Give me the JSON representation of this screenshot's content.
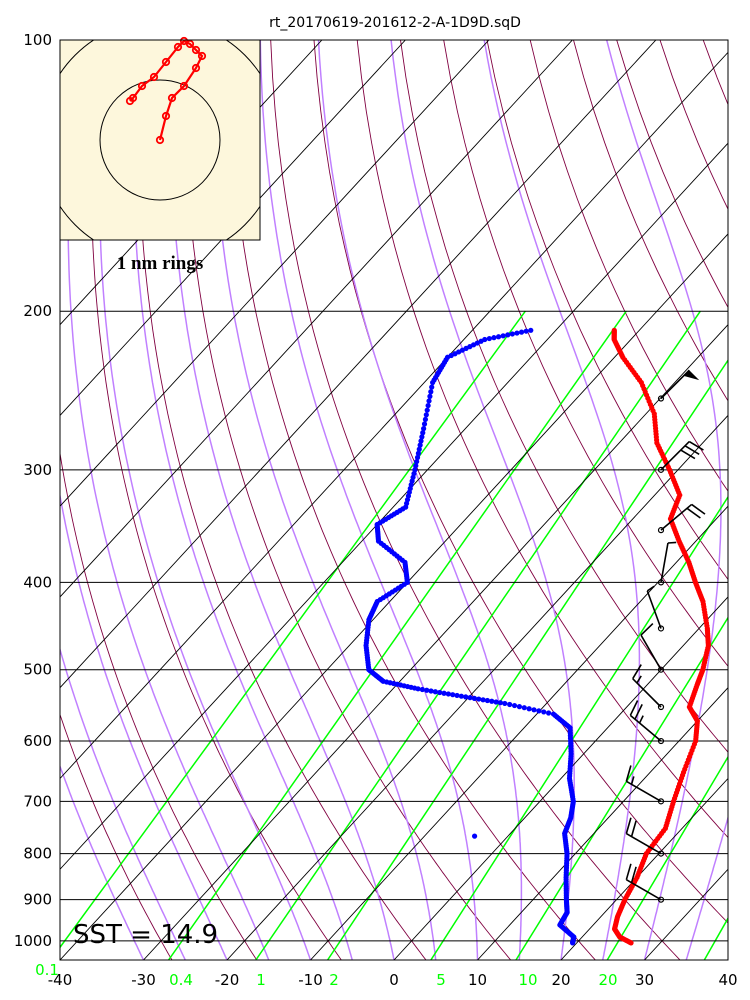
{
  "chart_data": {
    "type": "skew-t",
    "title": "rt_20170619-201612-2-A-1D9D.sqD",
    "sst_label": "SST = 14.9",
    "hodograph_label": "1 nm rings",
    "x_axis": {
      "range": [
        -40,
        40
      ],
      "ticks": [
        -40,
        -30,
        -20,
        -10,
        0,
        10,
        20,
        30,
        40
      ]
    },
    "y_axis": {
      "scale": "log",
      "range": [
        1050,
        100
      ],
      "ticks": [
        100,
        200,
        300,
        400,
        500,
        600,
        700,
        800,
        900,
        1000
      ]
    },
    "mixing_ratio_labels": [
      "0.1",
      "0.4",
      "1",
      "2",
      "5",
      "10",
      "20"
    ],
    "colors": {
      "temperature": "#ff0000",
      "dewpoint": "#0000ff",
      "mixing_ratio": "#00ff00",
      "moist_adiabat": "#c080ff",
      "dry_adiabat": "#800040",
      "isotherm": "#000000",
      "hodograph_bg": "#fdf7dc"
    },
    "temperature_profile": [
      {
        "p": 1005,
        "t": 26.5
      },
      {
        "p": 990,
        "t": 24.5
      },
      {
        "p": 970,
        "t": 23.0
      },
      {
        "p": 940,
        "t": 22.0
      },
      {
        "p": 900,
        "t": 21.0
      },
      {
        "p": 850,
        "t": 20.0
      },
      {
        "p": 800,
        "t": 18.5
      },
      {
        "p": 750,
        "t": 18.0
      },
      {
        "p": 700,
        "t": 16.0
      },
      {
        "p": 650,
        "t": 14.0
      },
      {
        "p": 600,
        "t": 12.0
      },
      {
        "p": 570,
        "t": 10.0
      },
      {
        "p": 550,
        "t": 7.5
      },
      {
        "p": 520,
        "t": 6.0
      },
      {
        "p": 500,
        "t": 5.0
      },
      {
        "p": 470,
        "t": 3.0
      },
      {
        "p": 450,
        "t": 1.0
      },
      {
        "p": 420,
        "t": -2.5
      },
      {
        "p": 400,
        "t": -5.5
      },
      {
        "p": 380,
        "t": -8.5
      },
      {
        "p": 360,
        "t": -12.0
      },
      {
        "p": 340,
        "t": -15.5
      },
      {
        "p": 320,
        "t": -17.0
      },
      {
        "p": 300,
        "t": -21.0
      },
      {
        "p": 280,
        "t": -25.5
      },
      {
        "p": 260,
        "t": -29.0
      },
      {
        "p": 240,
        "t": -34.0
      },
      {
        "p": 225,
        "t": -39.0
      },
      {
        "p": 215,
        "t": -42.0
      },
      {
        "p": 210,
        "t": -43.0
      }
    ],
    "dewpoint_profile": [
      {
        "p": 1005,
        "t": 19.5
      },
      {
        "p": 990,
        "t": 19.0
      },
      {
        "p": 960,
        "t": 16.0
      },
      {
        "p": 930,
        "t": 15.5
      },
      {
        "p": 900,
        "t": 14.0
      },
      {
        "p": 850,
        "t": 11.5
      },
      {
        "p": 800,
        "t": 9.0
      },
      {
        "p": 760,
        "t": 6.5
      },
      {
        "p": 730,
        "t": 5.5
      },
      {
        "p": 700,
        "t": 4.0
      },
      {
        "p": 660,
        "t": 1.0
      },
      {
        "p": 620,
        "t": -1.5
      },
      {
        "p": 580,
        "t": -4.5
      },
      {
        "p": 560,
        "t": -8.0
      },
      {
        "p": 545,
        "t": -15.0
      },
      {
        "p": 535,
        "t": -21.0
      },
      {
        "p": 525,
        "t": -27.0
      },
      {
        "p": 515,
        "t": -32.0
      },
      {
        "p": 500,
        "t": -35.0
      },
      {
        "p": 470,
        "t": -38.0
      },
      {
        "p": 440,
        "t": -40.5
      },
      {
        "p": 420,
        "t": -41.5
      },
      {
        "p": 400,
        "t": -40.0
      },
      {
        "p": 380,
        "t": -42.5
      },
      {
        "p": 360,
        "t": -48.0
      },
      {
        "p": 345,
        "t": -50.0
      },
      {
        "p": 330,
        "t": -48.5
      },
      {
        "p": 300,
        "t": -51.5
      },
      {
        "p": 270,
        "t": -55.0
      },
      {
        "p": 240,
        "t": -59.0
      },
      {
        "p": 225,
        "t": -60.0
      },
      {
        "p": 215,
        "t": -57.5
      },
      {
        "p": 210,
        "t": -53.0
      }
    ],
    "stray_dewpoint_point": {
      "p": 765,
      "t": -4.0
    },
    "wind_barbs": [
      {
        "p": 900,
        "speed_kt": 20,
        "dir": 300
      },
      {
        "p": 800,
        "speed_kt": 20,
        "dir": 300
      },
      {
        "p": 700,
        "speed_kt": 15,
        "dir": 300
      },
      {
        "p": 600,
        "speed_kt": 25,
        "dir": 310
      },
      {
        "p": 550,
        "speed_kt": 15,
        "dir": 315
      },
      {
        "p": 500,
        "speed_kt": 10,
        "dir": 330
      },
      {
        "p": 450,
        "speed_kt": 5,
        "dir": 340
      },
      {
        "p": 400,
        "speed_kt": 5,
        "dir": 10
      },
      {
        "p": 350,
        "speed_kt": 20,
        "dir": 50
      },
      {
        "p": 300,
        "speed_kt": 30,
        "dir": 45
      },
      {
        "p": 250,
        "speed_kt": 50,
        "dir": 45
      }
    ],
    "hodograph": {
      "rings_nm": [
        1,
        2
      ],
      "track": [
        {
          "x": 0.0,
          "y": 0.0
        },
        {
          "x": 0.1,
          "y": 0.4
        },
        {
          "x": 0.2,
          "y": 0.7
        },
        {
          "x": 0.4,
          "y": 0.9
        },
        {
          "x": 0.6,
          "y": 1.2
        },
        {
          "x": 0.7,
          "y": 1.4
        },
        {
          "x": 0.6,
          "y": 1.5
        },
        {
          "x": 0.5,
          "y": 1.6
        },
        {
          "x": 0.4,
          "y": 1.65
        },
        {
          "x": 0.3,
          "y": 1.55
        },
        {
          "x": 0.1,
          "y": 1.3
        },
        {
          "x": -0.1,
          "y": 1.05
        },
        {
          "x": -0.3,
          "y": 0.9
        },
        {
          "x": -0.45,
          "y": 0.7
        },
        {
          "x": -0.5,
          "y": 0.65
        }
      ]
    }
  }
}
